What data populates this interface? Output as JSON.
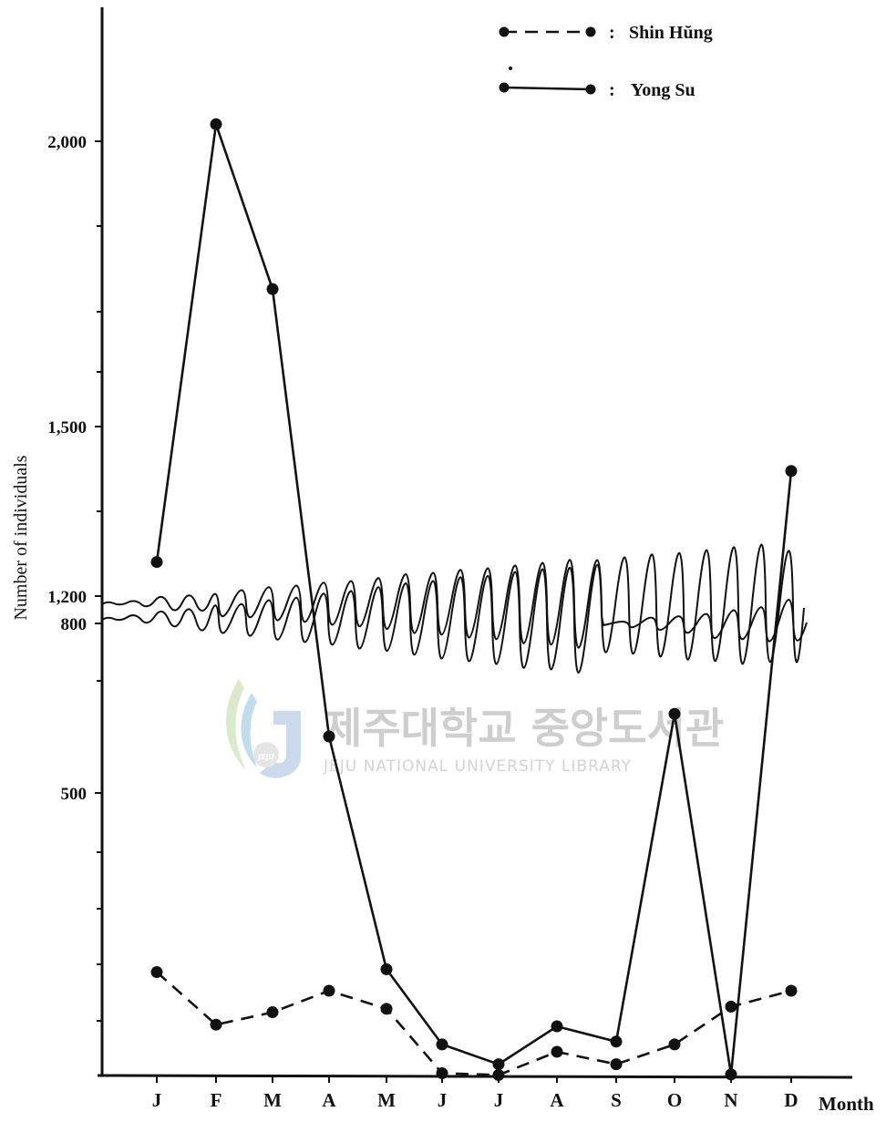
{
  "chart_data": {
    "type": "line",
    "title": "",
    "xlabel": "Month",
    "ylabel": "Number of individuals",
    "categories": [
      "J",
      "F",
      "M",
      "A",
      "M",
      "J",
      "J",
      "A",
      "S",
      "O",
      "N",
      "D"
    ],
    "y_ticks": [
      "2,000",
      "1,500",
      "1,200",
      "800",
      "500"
    ],
    "axis_break": "between 800 and 1,200",
    "ylim": [
      0,
      2120
    ],
    "grid": false,
    "legend_position": "top-right",
    "series": [
      {
        "name": "Shin Hŭng",
        "style": "dashed",
        "values": [
          183,
          90,
          112,
          150,
          118,
          4,
          1,
          42,
          20,
          55,
          122,
          150
        ]
      },
      {
        "name": "Yong Su",
        "style": "solid",
        "values": [
          1260,
          2030,
          1740,
          600,
          188,
          55,
          20,
          87,
          60,
          640,
          2,
          1420
        ]
      }
    ]
  },
  "legend": {
    "items": [
      {
        "separator": ":",
        "label": "Shin Hŭng"
      },
      {
        "separator": ":",
        "label": "Yong Su"
      }
    ]
  },
  "watermark": {
    "korean": "제주대학교 중앙도서관",
    "english": "JEJU NATIONAL UNIVERSITY LIBRARY",
    "logo_text": "JEJU"
  }
}
